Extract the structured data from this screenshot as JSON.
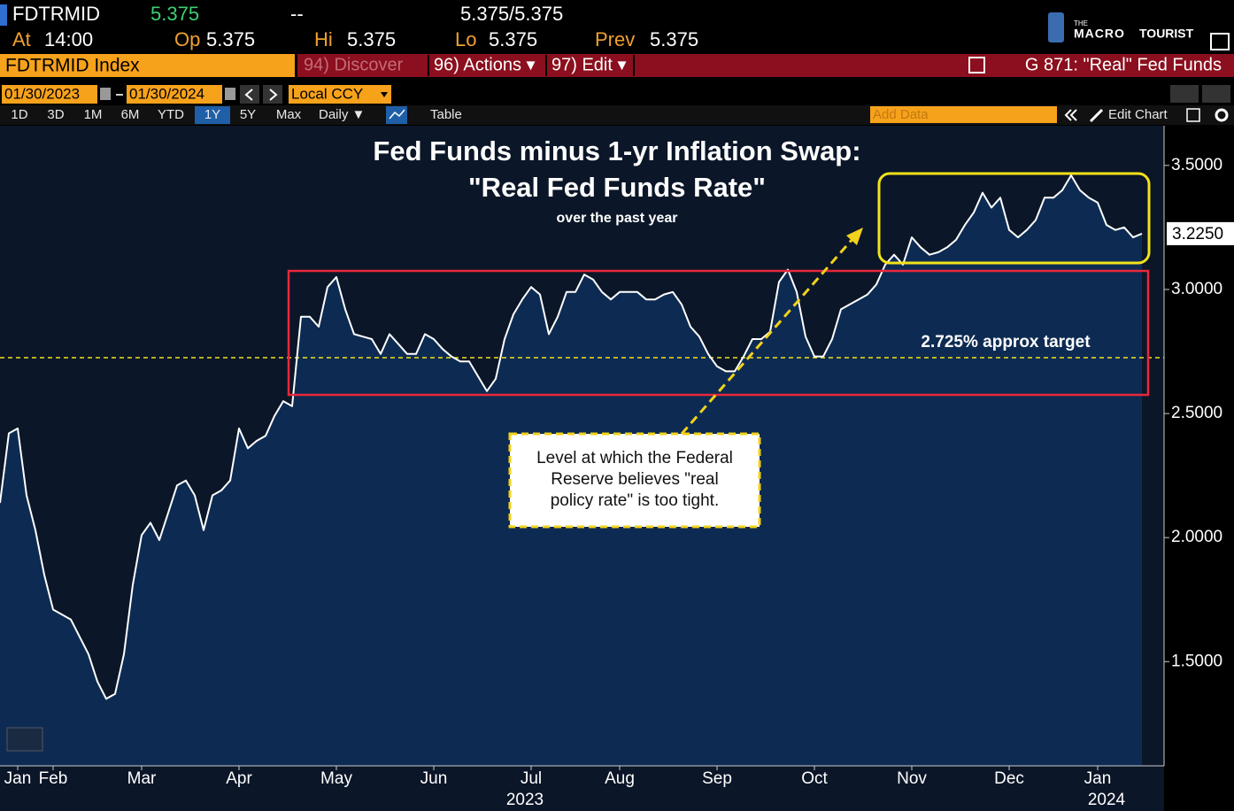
{
  "header": {
    "ticker": "FDTRMID",
    "last": "5.375",
    "change": "--",
    "bid_ask": "5.375/5.375",
    "time_label": "At",
    "time": "14:00",
    "open_label": "Op",
    "open": "5.375",
    "high_label": "Hi",
    "high": "5.375",
    "low_label": "Lo",
    "low": "5.375",
    "prev_label": "Prev",
    "prev": "5.375",
    "logo_small": "THE",
    "logo_a": "MACRO",
    "logo_b": "TOURIST"
  },
  "menu": {
    "security": "FDTRMID Index",
    "discover": "94) Discover",
    "actions": "96) Actions ▾",
    "edit": "97) Edit ▾",
    "chart_name": "G 871: \"Real\" Fed Funds"
  },
  "controls": {
    "start": "01/30/2023",
    "end": "01/30/2024",
    "currency": "Local CCY",
    "periods": [
      "1D",
      "3D",
      "1M",
      "6M",
      "YTD",
      "1Y",
      "5Y",
      "Max"
    ],
    "frequency": "Daily ▼",
    "table": "Table",
    "add_data": "Add Data",
    "edit_chart": "Edit Chart"
  },
  "chart_data": {
    "type": "area",
    "title": [
      "Fed Funds minus 1-yr Inflation Swap:",
      "\"Real Fed Funds Rate\""
    ],
    "subtitle": "over the past year",
    "categories": [
      null,
      null,
      "Jan",
      null,
      null,
      null,
      "Feb",
      null,
      null,
      null,
      null,
      null,
      null,
      null,
      null,
      null,
      "Mar",
      null,
      null,
      null,
      null,
      null,
      null,
      null,
      null,
      null,
      null,
      "Apr",
      null,
      null,
      null,
      null,
      null,
      null,
      null,
      null,
      null,
      null,
      "May",
      null,
      null,
      null,
      null,
      null,
      null,
      null,
      null,
      null,
      null,
      "Jun",
      null,
      null,
      null,
      null,
      null,
      null,
      null,
      null,
      null,
      null,
      "Jul",
      null,
      null,
      null,
      null,
      null,
      null,
      null,
      null,
      null,
      "Aug",
      null,
      null,
      null,
      null,
      null,
      null,
      null,
      null,
      null,
      null,
      "Sep",
      null,
      null,
      null,
      null,
      null,
      null,
      null,
      null,
      null,
      null,
      "Oct",
      null,
      null,
      null,
      null,
      null,
      null,
      null,
      null,
      null,
      null,
      "Nov",
      null,
      null,
      null,
      null,
      null,
      null,
      null,
      null,
      null,
      null,
      "Dec",
      null,
      null,
      null,
      null,
      null,
      null,
      null,
      null,
      null,
      "Jan",
      null,
      null,
      null,
      null,
      null
    ],
    "years": [
      "2023",
      "2024"
    ],
    "series": [
      {
        "color": "#ffffff",
        "fill": "#0d2b52",
        "values": [
          2.14,
          2.42,
          2.44,
          2.17,
          2.03,
          1.85,
          1.71,
          1.69,
          1.67,
          1.6,
          1.53,
          1.42,
          1.35,
          1.37,
          1.53,
          1.81,
          2.01,
          2.06,
          1.99,
          2.1,
          2.21,
          2.23,
          2.17,
          2.03,
          2.17,
          2.19,
          2.23,
          2.44,
          2.36,
          2.39,
          2.41,
          2.49,
          2.55,
          2.53,
          2.89,
          2.89,
          2.85,
          3.01,
          3.05,
          2.92,
          2.82,
          2.81,
          2.8,
          2.74,
          2.82,
          2.78,
          2.74,
          2.74,
          2.82,
          2.8,
          2.76,
          2.73,
          2.71,
          2.71,
          2.65,
          2.59,
          2.64,
          2.8,
          2.9,
          2.96,
          3.01,
          2.98,
          2.82,
          2.89,
          2.99,
          2.99,
          3.06,
          3.04,
          2.99,
          2.96,
          2.99,
          2.99,
          2.99,
          2.96,
          2.96,
          2.98,
          2.99,
          2.94,
          2.85,
          2.81,
          2.74,
          2.69,
          2.67,
          2.67,
          2.73,
          2.8,
          2.8,
          2.83,
          3.03,
          3.08,
          2.99,
          2.81,
          2.73,
          2.73,
          2.8,
          2.92,
          2.94,
          2.96,
          2.98,
          3.02,
          3.1,
          3.14,
          3.1,
          3.21,
          3.17,
          3.14,
          3.15,
          3.17,
          3.2,
          3.26,
          3.31,
          3.39,
          3.33,
          3.37,
          3.24,
          3.21,
          3.24,
          3.28,
          3.37,
          3.37,
          3.4,
          3.46,
          3.4,
          3.37,
          3.35,
          3.26,
          3.24,
          3.25,
          3.21,
          3.225
        ]
      }
    ],
    "last_value_label": "3.2250",
    "ylim": [
      1.08,
      3.66
    ],
    "yticks": [
      {
        "value": 1.5,
        "label": "1.5000"
      },
      {
        "value": 2,
        "label": "2.0000"
      },
      {
        "value": 2.5,
        "label": "2.5000"
      },
      {
        "value": 3,
        "label": "3.0000"
      },
      {
        "value": 3.5,
        "label": "3.5000"
      }
    ],
    "target": {
      "value": 2.725,
      "label": "2.725% approx target",
      "color": "#f2e21a"
    },
    "note": [
      "Level at which the Federal",
      "Reserve believes \"real",
      "policy rate\" is too tight."
    ]
  }
}
